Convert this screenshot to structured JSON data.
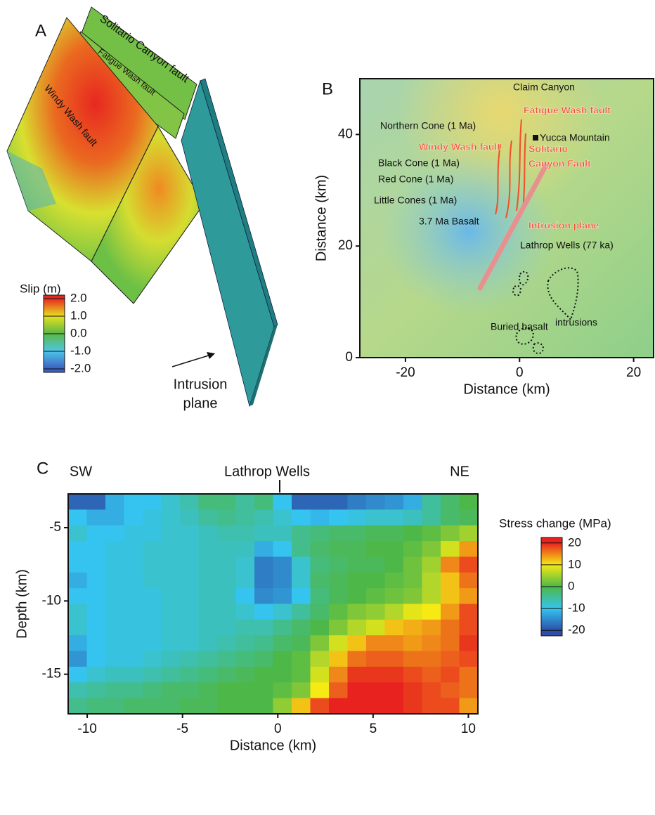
{
  "chart_data": [
    {
      "type": "surface",
      "title": "A",
      "surface_labels": [
        "Solitario Canyon fault",
        "Fatigue Wash fault",
        "Windy Wash fault"
      ],
      "annotation": [
        "Intrusion",
        "plane"
      ],
      "colorbar": {
        "title": "Slip (m)",
        "ylim": [
          -2.2,
          2.2
        ],
        "yticks": [
          {
            "value": 2,
            "label": "2.0"
          },
          {
            "value": 1,
            "label": "1.0"
          },
          {
            "value": 0,
            "label": "0.0"
          },
          {
            "value": -1,
            "label": "-1.0"
          },
          {
            "value": -2,
            "label": "-2.0"
          }
        ],
        "colors": [
          "#3a5fc0",
          "#4ec4e8",
          "#5ab846",
          "#e8e020",
          "#e82820"
        ]
      }
    },
    {
      "type": "map",
      "title": "B",
      "xlabel": "Distance (km)",
      "ylabel": "Distance (km)",
      "xlim": [
        -28,
        23.5
      ],
      "ylim": [
        0,
        50
      ],
      "xticks": [
        -20,
        0,
        20
      ],
      "yticks": [
        0,
        20,
        40
      ],
      "annotations": [
        {
          "text": "Claim Canyon",
          "color": "#111111"
        },
        {
          "text": "Northern Cone (1 Ma)",
          "color": "#111111"
        },
        {
          "text": "Yucca Mountain",
          "color": "#111111"
        },
        {
          "text": "Black Cone (1 Ma)",
          "color": "#111111"
        },
        {
          "text": "Red Cone (1 Ma)",
          "color": "#111111"
        },
        {
          "text": "Little Cones (1 Ma)",
          "color": "#111111"
        },
        {
          "text": "3.7 Ma Basalt",
          "color": "#111111"
        },
        {
          "text": "Lathrop Wells (77 ka)",
          "color": "#111111"
        },
        {
          "text": "Buried basalt",
          "color": "#111111"
        },
        {
          "text": "intrusions",
          "color": "#111111"
        },
        {
          "text": "Fatigue Wash fault",
          "color": "#f0502a"
        },
        {
          "text": "Windy Wash fault",
          "color": "#f0502a"
        },
        {
          "text": "Solitario",
          "color": "#f0502a"
        },
        {
          "text": "Canyon Fault",
          "color": "#f0502a"
        },
        {
          "text": "Intrusion plane",
          "color": "#f0502a"
        }
      ]
    },
    {
      "type": "heatmap",
      "title": "C",
      "xlabel": "Distance (km)",
      "ylabel": "Depth (km)",
      "top_labels": [
        "SW",
        "Lathrop Wells",
        "NE"
      ],
      "xlim": [
        -11,
        10.5
      ],
      "ylim": [
        -17.7,
        -2.7
      ],
      "xticks": [
        -10,
        -5,
        0,
        5,
        10
      ],
      "yticks": [
        -5,
        -10,
        -15
      ],
      "z": [
        [
          -18,
          -18,
          -12,
          -10,
          -10,
          -8,
          -6,
          -3,
          -3,
          -5,
          -3,
          -10,
          -18,
          -18,
          -18,
          -16,
          -15,
          -14,
          -12,
          -5,
          -2,
          0
        ],
        [
          -10,
          -12,
          -12,
          -10,
          -9,
          -8,
          -7,
          -5,
          -4,
          -5,
          -6,
          -8,
          -10,
          -11,
          -10,
          -9,
          -8,
          -8,
          -7,
          -5,
          -2,
          -1
        ],
        [
          -8,
          -10,
          -10,
          -9,
          -9,
          -8,
          -8,
          -7,
          -6,
          -6,
          -7,
          -7,
          -4,
          -3,
          -2,
          -2,
          -1,
          -1,
          0,
          1,
          3,
          5
        ],
        [
          -10,
          -10,
          -9,
          -9,
          -8,
          -8,
          -8,
          -7,
          -7,
          -7,
          -12,
          -10,
          -4,
          -2,
          -1,
          -1,
          0,
          0,
          1,
          3,
          8,
          14
        ],
        [
          -10,
          -10,
          -9,
          -9,
          -8,
          -8,
          -8,
          -7,
          -7,
          -8,
          -16,
          -15,
          -8,
          -3,
          -2,
          -1,
          -1,
          0,
          2,
          5,
          15,
          18
        ],
        [
          -12,
          -10,
          -9,
          -9,
          -8,
          -8,
          -8,
          -7,
          -7,
          -8,
          -16,
          -15,
          -8,
          -2,
          -1,
          0,
          0,
          1,
          2,
          6,
          12,
          16
        ],
        [
          -10,
          -10,
          -9,
          -9,
          -9,
          -8,
          -8,
          -7,
          -7,
          -10,
          -15,
          -14,
          -10,
          -3,
          -1,
          0,
          1,
          2,
          3,
          6,
          12,
          14
        ],
        [
          -8,
          -10,
          -9,
          -9,
          -9,
          -8,
          -8,
          -7,
          -7,
          -8,
          -10,
          -8,
          -5,
          -2,
          1,
          3,
          4,
          6,
          9,
          10,
          14,
          18
        ],
        [
          -8,
          -10,
          -9,
          -9,
          -9,
          -8,
          -8,
          -7,
          -7,
          -6,
          -6,
          -4,
          -2,
          0,
          3,
          6,
          8,
          12,
          13,
          14,
          16,
          18
        ],
        [
          -12,
          -10,
          -9,
          -9,
          -9,
          -8,
          -8,
          -7,
          -6,
          -5,
          -4,
          -2,
          -1,
          3,
          8,
          12,
          15,
          15,
          14,
          15,
          16,
          19
        ],
        [
          -14,
          -10,
          -9,
          -9,
          -8,
          -7,
          -6,
          -5,
          -4,
          -3,
          -2,
          0,
          1,
          6,
          12,
          16,
          17,
          17,
          16,
          16,
          17,
          18
        ],
        [
          -10,
          -8,
          -7,
          -7,
          -6,
          -5,
          -4,
          -3,
          -2,
          -1,
          0,
          0,
          1,
          8,
          15,
          19,
          19,
          19,
          18,
          17,
          18,
          16
        ],
        [
          -6,
          -5,
          -4,
          -4,
          -3,
          -2,
          -2,
          -1,
          0,
          0,
          0,
          1,
          3,
          10,
          17,
          20,
          20,
          20,
          19,
          18,
          17,
          16
        ],
        [
          -4,
          -3,
          -3,
          -2,
          -2,
          -2,
          -1,
          -1,
          0,
          0,
          0,
          4,
          12,
          18,
          20,
          20,
          20,
          20,
          19,
          18,
          18,
          14
        ]
      ],
      "colorbar": {
        "title": "Stress change (MPa)",
        "ylim": [
          -22.5,
          22.5
        ],
        "yticks": [
          20,
          10,
          0,
          -10,
          -20
        ],
        "colors": [
          "#2b4fa8",
          "#35c4f0",
          "#4db848",
          "#f5ea14",
          "#e8231f"
        ]
      }
    }
  ]
}
